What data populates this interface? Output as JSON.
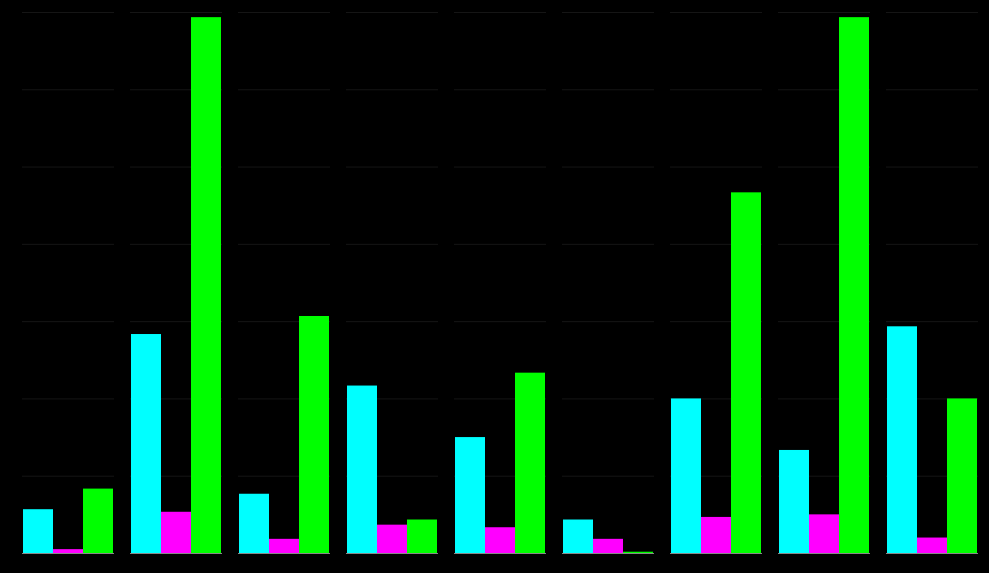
{
  "chart_data": {
    "type": "bar",
    "categories": [
      null,
      null,
      null,
      null,
      null,
      null,
      null,
      null,
      null
    ],
    "series": [
      {
        "color": "#00FFFF",
        "values": [
          1700,
          8500,
          2300,
          6500,
          4500,
          1300,
          6000,
          4000,
          8800
        ]
      },
      {
        "color": "#FF00FF",
        "values": [
          150,
          1600,
          550,
          1100,
          1000,
          550,
          1400,
          1500,
          600
        ]
      },
      {
        "color": "#00FF00",
        "values": [
          2500,
          20800,
          9200,
          1300,
          7000,
          50,
          14000,
          20800,
          6000
        ]
      }
    ],
    "ylim": [
      0,
      21000
    ],
    "yticks": [
      0,
      3000,
      6000,
      9000,
      12000,
      15000,
      18000,
      21000
    ],
    "grid": true,
    "tick_labels": false
  }
}
